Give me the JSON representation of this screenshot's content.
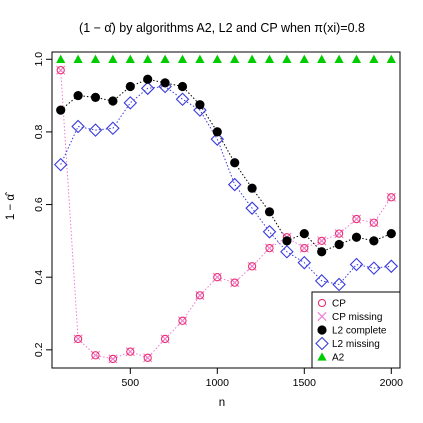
{
  "chart_data": {
    "type": "scatter",
    "title": "(1 − α̂) by algorithms A2, L2 and CP when π(xi)=0.8",
    "xlabel": "n",
    "ylabel": "1 − α̂",
    "xlim": [
      50,
      2050
    ],
    "ylim": [
      0.15,
      1.02
    ],
    "x_ticks": [
      500,
      1000,
      1500,
      2000
    ],
    "y_ticks": [
      0.2,
      0.4,
      0.6,
      0.8,
      1.0
    ],
    "x_tick_labels": [
      "500",
      "1000",
      "1500",
      "2000"
    ],
    "y_tick_labels": [
      "0.2",
      "0.4",
      "0.6",
      "0.8",
      "1.0"
    ],
    "grid": false,
    "legend_position": "bottom-right",
    "x": [
      100,
      200,
      300,
      400,
      500,
      600,
      700,
      800,
      900,
      1000,
      1100,
      1200,
      1300,
      1400,
      1500,
      1600,
      1700,
      1800,
      1900,
      2000
    ],
    "series": [
      {
        "name": "CP",
        "marker": "open-circle",
        "color": "#e8336a",
        "connected": false,
        "values": [
          0.97,
          0.23,
          0.185,
          0.175,
          0.195,
          0.178,
          0.23,
          0.28,
          0.35,
          0.4,
          0.385,
          0.43,
          0.48,
          0.51,
          0.48,
          0.5,
          0.52,
          0.56,
          0.55,
          0.62
        ]
      },
      {
        "name": "CP missing",
        "marker": "x",
        "color": "#f07ad2",
        "connected": true,
        "values": [
          0.97,
          0.23,
          0.185,
          0.175,
          0.195,
          0.178,
          0.23,
          0.28,
          0.35,
          0.4,
          0.385,
          0.43,
          0.48,
          0.51,
          0.48,
          0.5,
          0.52,
          0.56,
          0.55,
          0.62
        ]
      },
      {
        "name": "L2 complete",
        "marker": "filled-circle",
        "color": "#000000",
        "connected": true,
        "values": [
          0.86,
          0.9,
          0.895,
          0.885,
          0.925,
          0.945,
          0.935,
          0.925,
          0.875,
          0.8,
          0.715,
          0.645,
          0.58,
          0.5,
          0.52,
          0.47,
          0.49,
          0.51,
          0.5,
          0.52
        ]
      },
      {
        "name": "L2 missing",
        "marker": "open-diamond",
        "color": "#3a3adf",
        "connected": true,
        "values": [
          0.71,
          0.815,
          0.805,
          0.81,
          0.88,
          0.92,
          0.925,
          0.89,
          0.86,
          0.78,
          0.655,
          0.59,
          0.525,
          0.47,
          0.44,
          0.39,
          0.38,
          0.435,
          0.425,
          0.43
        ]
      },
      {
        "name": "A2",
        "marker": "filled-triangle",
        "color": "#00cc00",
        "connected": false,
        "values": [
          1.0,
          1.0,
          1.0,
          1.0,
          1.0,
          1.0,
          1.0,
          1.0,
          1.0,
          1.0,
          1.0,
          1.0,
          1.0,
          1.0,
          1.0,
          1.0,
          1.0,
          1.0,
          1.0,
          1.0
        ]
      }
    ]
  }
}
